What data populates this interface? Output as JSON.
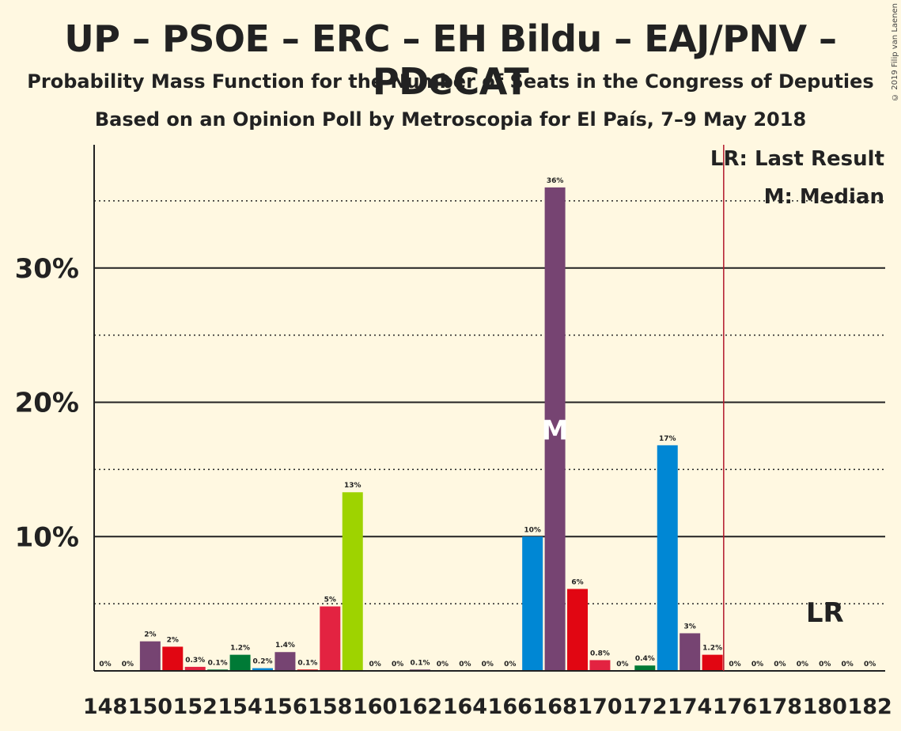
{
  "title": "UP – PSOE – ERC – EH Bildu – EAJ/PNV – PDeCAT",
  "subtitle1": "Probability Mass Function for the Number of Seats in the Congress of Deputies",
  "subtitle2": "Based on an Opinion Poll by Metroscopia for El País, 7–9 May 2018",
  "copyright": "© 2019 Filip van Laenen",
  "legend": {
    "last_result": "LR: Last Result",
    "median": "M: Median"
  },
  "markers": {
    "median_label": "M",
    "median_seat": 168,
    "last_result_label": "LR",
    "last_result_seat": 176
  },
  "colors": {
    "background": "#fff8e1",
    "purple": "#764472",
    "red": "#e10612",
    "crimson": "#e32341",
    "green": "#007a36",
    "blue": "#0087d4",
    "lime": "#9ed300",
    "lr_line": "#b2182b"
  },
  "chart_data": {
    "type": "bar",
    "title": "UP – PSOE – ERC – EH Bildu – EAJ/PNV – PDeCAT",
    "xlabel": "",
    "ylabel": "",
    "ylim": [
      0,
      39
    ],
    "yticks": [
      10,
      20,
      30
    ],
    "ytick_labels": [
      "10%",
      "20%",
      "30%"
    ],
    "grid_dotted": [
      5,
      15,
      25,
      35
    ],
    "x": [
      148,
      149,
      150,
      151,
      152,
      153,
      154,
      155,
      156,
      157,
      158,
      159,
      160,
      161,
      162,
      163,
      164,
      165,
      166,
      167,
      168,
      169,
      170,
      171,
      172,
      173,
      174,
      175,
      176,
      177,
      178,
      179,
      180,
      181,
      182
    ],
    "xtick_labels": [
      "148",
      "150",
      "152",
      "154",
      "156",
      "158",
      "160",
      "162",
      "164",
      "166",
      "168",
      "170",
      "172",
      "174",
      "176",
      "178",
      "180",
      "182"
    ],
    "values": [
      0,
      0,
      2.2,
      1.8,
      0.3,
      0.1,
      1.2,
      0.2,
      1.4,
      0.1,
      4.8,
      13.3,
      0,
      0,
      0.1,
      0,
      0,
      0,
      0,
      10,
      36,
      6.1,
      0.8,
      0,
      0.4,
      16.8,
      2.8,
      1.2,
      0,
      0,
      0,
      0,
      0,
      0,
      0
    ],
    "labels": [
      "0%",
      "0%",
      "2%",
      "2%",
      "0.3%",
      "0.1%",
      "1.2%",
      "0.2%",
      "1.4%",
      "0.1%",
      "5%",
      "13%",
      "0%",
      "0%",
      "0.1%",
      "0%",
      "0%",
      "0%",
      "0%",
      "10%",
      "36%",
      "6%",
      "0.8%",
      "0%",
      "0.4%",
      "17%",
      "3%",
      "1.2%",
      "0%",
      "0%",
      "0%",
      "0%",
      "0%",
      "0%",
      "0%"
    ],
    "bar_colors": [
      "purple",
      "red",
      "purple",
      "red",
      "crimson",
      "green",
      "green",
      "blue",
      "purple",
      "red",
      "crimson",
      "lime",
      "purple",
      "red",
      "purple",
      "red",
      "purple",
      "red",
      "purple",
      "blue",
      "purple",
      "red",
      "crimson",
      "green",
      "green",
      "blue",
      "purple",
      "red",
      "purple",
      "red",
      "purple",
      "red",
      "purple",
      "red",
      "purple"
    ]
  }
}
